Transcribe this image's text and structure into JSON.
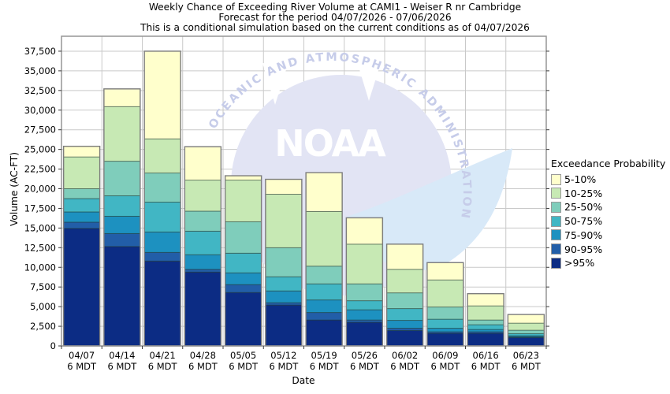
{
  "title": {
    "line1": "Weekly Chance of Exceeding River Volume at CAMI1 - Weiser R nr Cambridge",
    "line2": "Forecast for the period 04/07/2026 - 07/06/2026",
    "line3": "This is a conditional simulation based on the current conditions as of 04/07/2026"
  },
  "axes": {
    "y_label": "Volume (AC-FT)",
    "x_label": "Date",
    "y_ticks": [
      0,
      2500,
      5000,
      7500,
      10000,
      12500,
      15000,
      17500,
      20000,
      22500,
      25000,
      27500,
      30000,
      32500,
      35000,
      37500
    ],
    "grid_color": "#c9c9c9",
    "frame_color": "#959595",
    "tick_color": "#3a3a3a"
  },
  "watermark": {
    "arc_text": "OCEANIC AND ATMOSPHERIC ADMINISTRATION",
    "wordmark": "NOAA",
    "emblem_color": "#e2e4f4",
    "arc_text_color": "#c6cce9",
    "gull_color": "#d8e9f8"
  },
  "legend": {
    "title": "Exceedance Probability",
    "items": [
      {
        "label": "5-10%",
        "color": "#ffffcc"
      },
      {
        "label": "10-25%",
        "color": "#c7e9b4"
      },
      {
        "label": "25-50%",
        "color": "#7fcdbb"
      },
      {
        "label": "50-75%",
        "color": "#41b6c4"
      },
      {
        "label": "75-90%",
        "color": "#1d91c0"
      },
      {
        "label": "90-95%",
        "color": "#225ea8"
      },
      {
        "label": ">95%",
        "color": "#0c2c84"
      }
    ]
  },
  "chart_data": {
    "type": "bar",
    "stacked": true,
    "title": "Weekly Chance of Exceeding River Volume at CAMI1 - Weiser R nr Cambridge",
    "xlabel": "Date",
    "ylabel": "Volume (AC-FT)",
    "ylim": [
      0,
      39400
    ],
    "grid": true,
    "legend_position": "right",
    "legend_title": "Exceedance Probability",
    "categories": [
      "04/07",
      "04/14",
      "04/21",
      "04/28",
      "05/05",
      "05/12",
      "05/19",
      "05/26",
      "06/02",
      "06/09",
      "06/16",
      "06/23"
    ],
    "category_time_label": "6 MDT",
    "bar_totals_acft": [
      25400,
      32700,
      37500,
      25350,
      21650,
      21200,
      22050,
      16300,
      12950,
      10600,
      6650,
      4000
    ],
    "series": [
      {
        "name": ">95%",
        "color": "#0c2c84",
        "values": [
          14950,
          12650,
          10800,
          9400,
          6800,
          5200,
          3300,
          3000,
          1950,
          1600,
          1600,
          1050
        ]
      },
      {
        "name": "90-95%",
        "color": "#225ea8",
        "values": [
          800,
          1650,
          1100,
          350,
          1000,
          300,
          950,
          300,
          300,
          200,
          200,
          100
        ]
      },
      {
        "name": "75-90%",
        "color": "#1d91c0",
        "values": [
          1300,
          2200,
          2600,
          1850,
          1500,
          1500,
          1600,
          1300,
          1000,
          450,
          300,
          150
        ]
      },
      {
        "name": "50-75%",
        "color": "#41b6c4",
        "values": [
          1700,
          2600,
          3800,
          3000,
          2500,
          1800,
          2050,
          1150,
          1500,
          1150,
          600,
          250
        ]
      },
      {
        "name": "25-50%",
        "color": "#7fcdbb",
        "values": [
          1250,
          4400,
          3700,
          2550,
          4000,
          3700,
          2250,
          2150,
          2000,
          1550,
          600,
          450
        ]
      },
      {
        "name": "10-25%",
        "color": "#c7e9b4",
        "values": [
          4050,
          6950,
          4350,
          3950,
          5300,
          6800,
          6950,
          5050,
          3000,
          3450,
          1800,
          900
        ]
      },
      {
        "name": "5-10%",
        "color": "#ffffcc",
        "values": [
          1350,
          2250,
          11150,
          4250,
          550,
          1900,
          4950,
          3350,
          3200,
          2200,
          1550,
          1100
        ]
      }
    ]
  }
}
